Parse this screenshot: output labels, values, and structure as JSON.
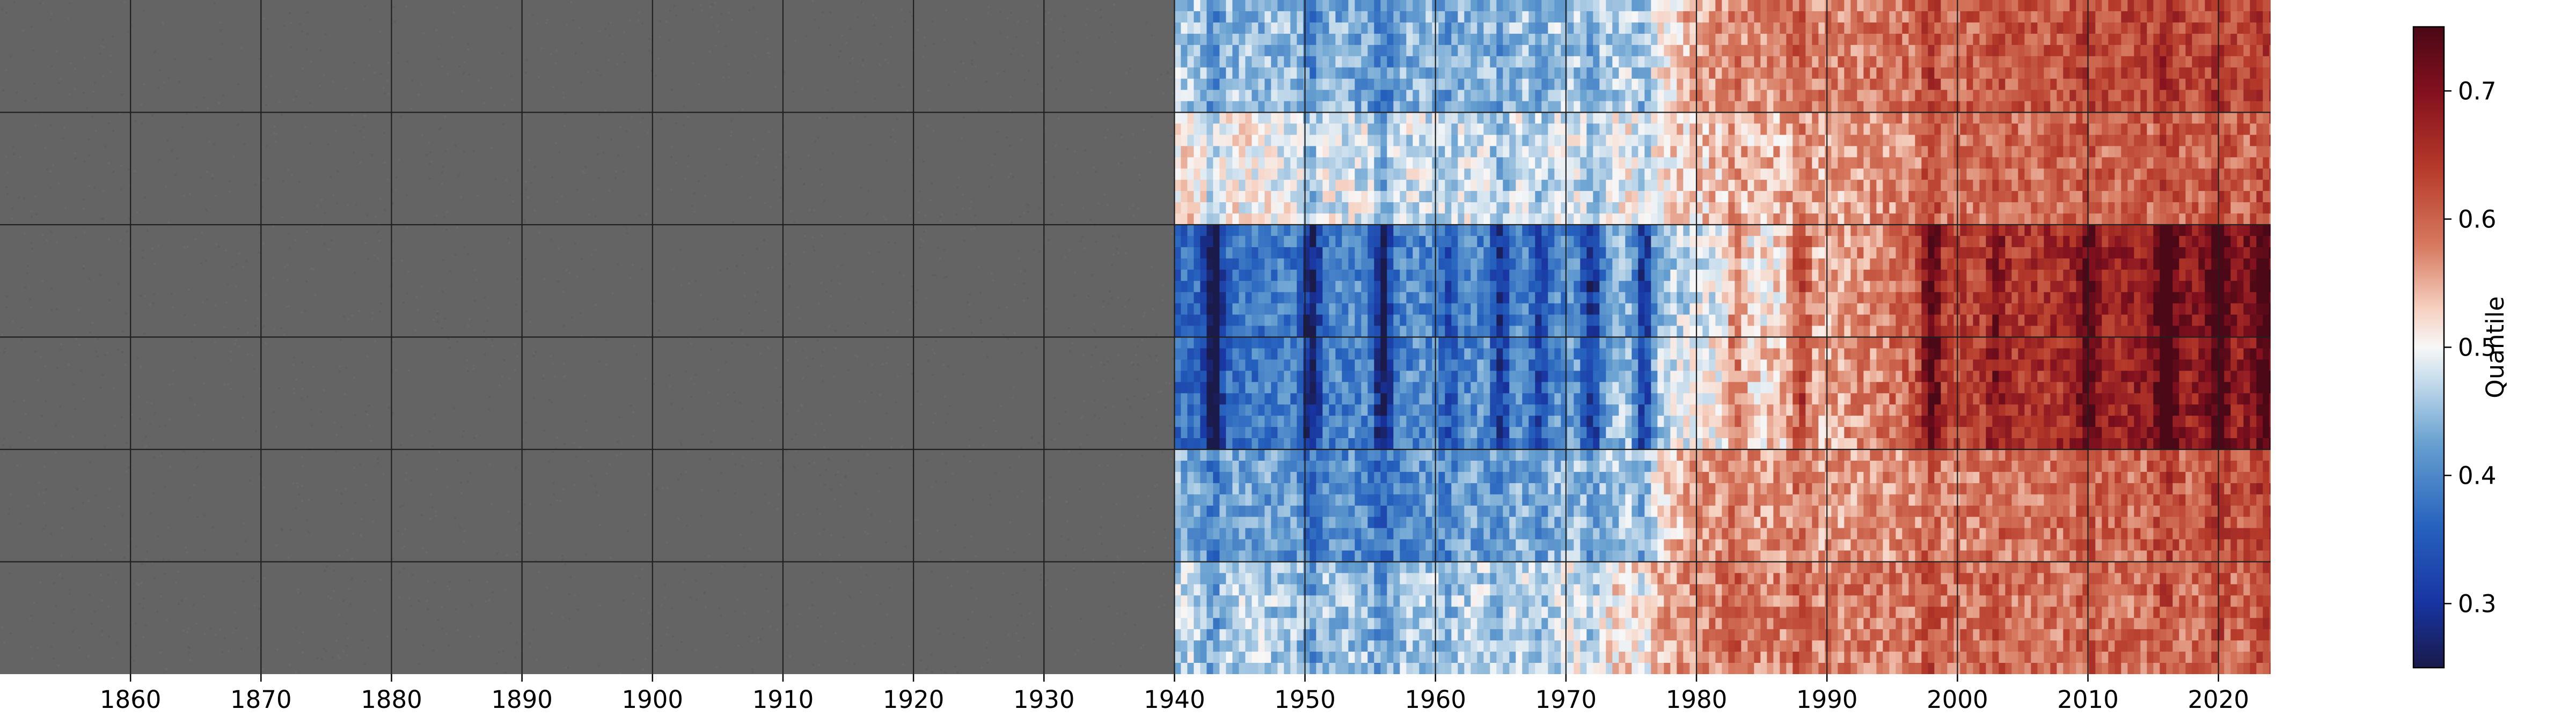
{
  "chart_data": {
    "type": "heatmap",
    "title": "",
    "xlabel": "",
    "ylabel": "",
    "xlim": [
      1850,
      2024
    ],
    "x_ticks": [
      1860,
      1870,
      1880,
      1890,
      1900,
      1910,
      1920,
      1930,
      1940,
      1950,
      1960,
      1970,
      1980,
      1990,
      2000,
      2010,
      2020
    ],
    "x_tick_labels": [
      "1860",
      "1870",
      "1880",
      "1890",
      "1900",
      "1910",
      "1920",
      "1930",
      "1940",
      "1950",
      "1960",
      "1970",
      "1980",
      "1990",
      "2000",
      "2010",
      "2020"
    ],
    "grid": true,
    "n_rows": 6,
    "data_start_year": 1940,
    "no_data_color": "#646464",
    "colormap": "RdBu_r",
    "vmin": 0.25,
    "vmax": 0.75,
    "colorbar": {
      "label": "Quantile",
      "ticks": [
        0.3,
        0.4,
        0.5,
        0.6,
        0.7
      ],
      "tick_labels": [
        "0.3",
        "0.4",
        "0.5",
        "0.6",
        "0.7"
      ],
      "position": "right"
    },
    "row_base_quantile": [
      {
        "points": [
          [
            1940,
            0.46
          ],
          [
            1955,
            0.43
          ],
          [
            1965,
            0.45
          ],
          [
            1975,
            0.47
          ],
          [
            1980,
            0.56
          ],
          [
            1990,
            0.58
          ],
          [
            2000,
            0.6
          ],
          [
            2015,
            0.63
          ],
          [
            2024,
            0.62
          ]
        ]
      },
      {
        "points": [
          [
            1940,
            0.52
          ],
          [
            1955,
            0.48
          ],
          [
            1970,
            0.48
          ],
          [
            1980,
            0.53
          ],
          [
            1990,
            0.55
          ],
          [
            2000,
            0.59
          ],
          [
            2015,
            0.6
          ],
          [
            2024,
            0.6
          ]
        ]
      },
      {
        "points": [
          [
            1940,
            0.37
          ],
          [
            1955,
            0.4
          ],
          [
            1970,
            0.4
          ],
          [
            1980,
            0.48
          ],
          [
            1990,
            0.55
          ],
          [
            2000,
            0.63
          ],
          [
            2015,
            0.68
          ],
          [
            2024,
            0.7
          ]
        ]
      },
      {
        "points": [
          [
            1940,
            0.37
          ],
          [
            1955,
            0.4
          ],
          [
            1970,
            0.41
          ],
          [
            1980,
            0.5
          ],
          [
            1990,
            0.55
          ],
          [
            2000,
            0.63
          ],
          [
            2015,
            0.68
          ],
          [
            2024,
            0.68
          ]
        ]
      },
      {
        "points": [
          [
            1940,
            0.44
          ],
          [
            1955,
            0.4
          ],
          [
            1965,
            0.43
          ],
          [
            1975,
            0.46
          ],
          [
            1980,
            0.57
          ],
          [
            1990,
            0.56
          ],
          [
            2000,
            0.58
          ],
          [
            2015,
            0.6
          ],
          [
            2024,
            0.62
          ]
        ]
      },
      {
        "points": [
          [
            1940,
            0.47
          ],
          [
            1955,
            0.45
          ],
          [
            1970,
            0.48
          ],
          [
            1980,
            0.58
          ],
          [
            1990,
            0.58
          ],
          [
            2000,
            0.59
          ],
          [
            2015,
            0.59
          ],
          [
            2024,
            0.6
          ]
        ]
      }
    ],
    "vertical_bands": [
      {
        "year": 1943,
        "delta": -0.16
      },
      {
        "year": 1950.5,
        "delta": -0.13
      },
      {
        "year": 1956,
        "delta": -0.15
      },
      {
        "year": 1961,
        "delta": -0.06
      },
      {
        "year": 1965,
        "delta": -0.1
      },
      {
        "year": 1968,
        "delta": -0.08
      },
      {
        "year": 1972,
        "delta": -0.13
      },
      {
        "year": 1976,
        "delta": -0.15
      },
      {
        "year": 1983,
        "delta": 0.07
      },
      {
        "year": 1988,
        "delta": 0.1
      },
      {
        "year": 1998,
        "delta": 0.14
      },
      {
        "year": 2003,
        "delta": 0.06
      },
      {
        "year": 2010,
        "delta": 0.08
      },
      {
        "year": 2016,
        "delta": 0.12
      },
      {
        "year": 2020,
        "delta": 0.1
      },
      {
        "year": 2023.5,
        "delta": 0.08
      }
    ]
  }
}
